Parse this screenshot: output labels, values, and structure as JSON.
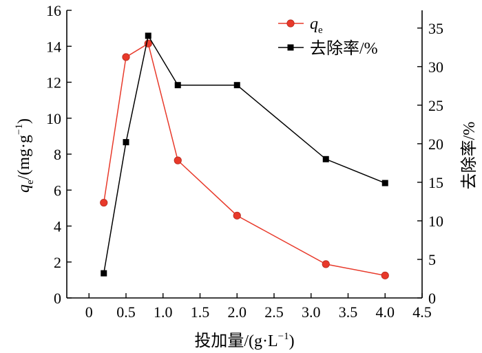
{
  "chart_data": {
    "type": "line",
    "xlabel_main": "投加量/(g·L",
    "xlabel_sup": "−1",
    "xlabel_tail": ")",
    "ylabel_left_var": "q",
    "ylabel_left_sub": "e",
    "ylabel_left_main": "/(mg·g",
    "ylabel_left_sup": "−1",
    "ylabel_left_tail": ")",
    "ylabel_right": "去除率/%",
    "xlim": [
      -0.3,
      4.5
    ],
    "x_ticks": [
      "0",
      "0.5",
      "1.0",
      "1.5",
      "2.0",
      "2.5",
      "3.0",
      "3.5",
      "4.0",
      "4.5"
    ],
    "x_tick_values": [
      0,
      0.5,
      1.0,
      1.5,
      2.0,
      2.5,
      3.0,
      3.5,
      4.0,
      4.5
    ],
    "ylim_left": [
      0,
      16
    ],
    "y_left_ticks": [
      "0",
      "2",
      "4",
      "6",
      "8",
      "10",
      "12",
      "14",
      "16"
    ],
    "y_left_tick_values": [
      0,
      2,
      4,
      6,
      8,
      10,
      12,
      14,
      16
    ],
    "ylim_right": [
      0,
      37.3
    ],
    "y_right_ticks": [
      "0",
      "5",
      "10",
      "15",
      "20",
      "25",
      "30",
      "35"
    ],
    "y_right_tick_values": [
      0,
      5,
      10,
      15,
      20,
      25,
      30,
      35
    ],
    "series": [
      {
        "name_var": "q",
        "name_sub": "e",
        "axis": "left",
        "color": "#e8392a",
        "marker": "circle",
        "x": [
          0.2,
          0.5,
          0.8,
          1.2,
          2.0,
          3.2,
          4.0
        ],
        "values": [
          5.3,
          13.4,
          14.15,
          7.65,
          4.58,
          1.88,
          1.25
        ]
      },
      {
        "name": "去除率/%",
        "axis": "right",
        "color": "#000000",
        "marker": "square",
        "x": [
          0.2,
          0.5,
          0.8,
          1.2,
          2.0,
          3.2,
          4.0
        ],
        "values": [
          3.2,
          20.2,
          34.0,
          27.6,
          27.6,
          18.0,
          14.9
        ]
      }
    ],
    "legend_position": "top-right",
    "grid": false
  }
}
